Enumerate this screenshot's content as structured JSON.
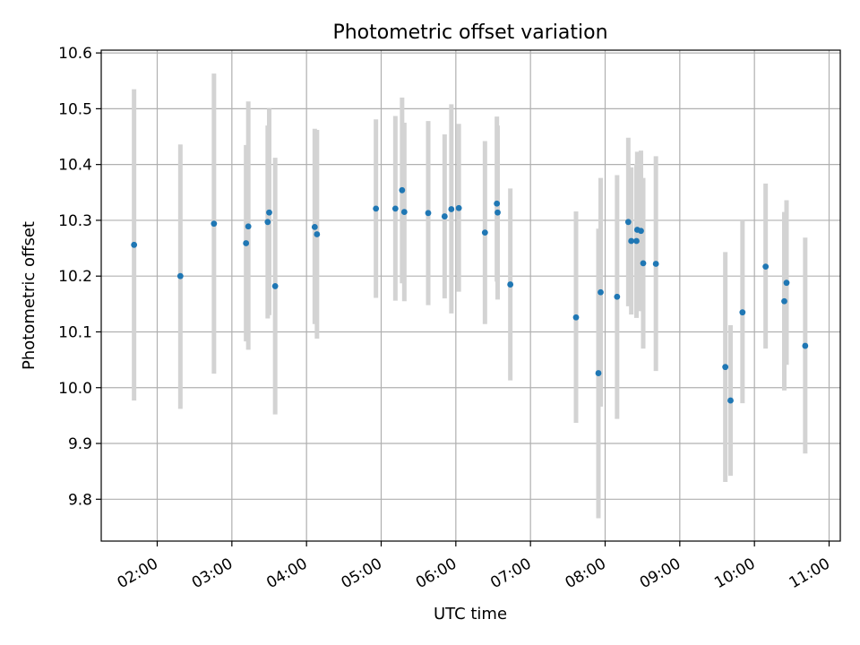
{
  "chart_data": {
    "type": "scatter",
    "title": "Photometric offset variation",
    "xlabel": "UTC time",
    "ylabel": "Photometric offset",
    "x_unit": "hours UTC",
    "xlim": [
      1.25,
      11.15
    ],
    "ylim": [
      9.725,
      10.605
    ],
    "grid": true,
    "colors": {
      "point": "#1f77b4",
      "errorbar": "#d3d3d3"
    },
    "x_ticks": [
      {
        "value": 2,
        "label": "02:00"
      },
      {
        "value": 3,
        "label": "03:00"
      },
      {
        "value": 4,
        "label": "04:00"
      },
      {
        "value": 5,
        "label": "05:00"
      },
      {
        "value": 6,
        "label": "06:00"
      },
      {
        "value": 7,
        "label": "07:00"
      },
      {
        "value": 8,
        "label": "08:00"
      },
      {
        "value": 9,
        "label": "09:00"
      },
      {
        "value": 10,
        "label": "10:00"
      },
      {
        "value": 11,
        "label": "11:00"
      }
    ],
    "y_ticks": [
      {
        "value": 9.8,
        "label": "9.8"
      },
      {
        "value": 9.9,
        "label": "9.9"
      },
      {
        "value": 10.0,
        "label": "10.0"
      },
      {
        "value": 10.1,
        "label": "10.1"
      },
      {
        "value": 10.2,
        "label": "10.2"
      },
      {
        "value": 10.3,
        "label": "10.3"
      },
      {
        "value": 10.4,
        "label": "10.4"
      },
      {
        "value": 10.5,
        "label": "10.5"
      },
      {
        "value": 10.6,
        "label": "10.6"
      }
    ],
    "points": [
      {
        "x": 1.69,
        "y": 10.256,
        "ylo": 9.977,
        "yhi": 10.535
      },
      {
        "x": 2.31,
        "y": 10.2,
        "ylo": 9.962,
        "yhi": 10.436
      },
      {
        "x": 2.76,
        "y": 10.294,
        "ylo": 10.025,
        "yhi": 10.563
      },
      {
        "x": 3.19,
        "y": 10.259,
        "ylo": 10.083,
        "yhi": 10.435
      },
      {
        "x": 3.22,
        "y": 10.289,
        "ylo": 10.068,
        "yhi": 10.513
      },
      {
        "x": 3.48,
        "y": 10.297,
        "ylo": 10.124,
        "yhi": 10.47
      },
      {
        "x": 3.5,
        "y": 10.314,
        "ylo": 10.13,
        "yhi": 10.5
      },
      {
        "x": 3.58,
        "y": 10.182,
        "ylo": 9.952,
        "yhi": 10.412
      },
      {
        "x": 4.11,
        "y": 10.288,
        "ylo": 10.114,
        "yhi": 10.464
      },
      {
        "x": 4.14,
        "y": 10.275,
        "ylo": 10.088,
        "yhi": 10.462
      },
      {
        "x": 4.93,
        "y": 10.321,
        "ylo": 10.161,
        "yhi": 10.481
      },
      {
        "x": 5.19,
        "y": 10.321,
        "ylo": 10.156,
        "yhi": 10.487
      },
      {
        "x": 5.28,
        "y": 10.354,
        "ylo": 10.187,
        "yhi": 10.52
      },
      {
        "x": 5.31,
        "y": 10.315,
        "ylo": 10.155,
        "yhi": 10.475
      },
      {
        "x": 5.63,
        "y": 10.313,
        "ylo": 10.148,
        "yhi": 10.478
      },
      {
        "x": 5.85,
        "y": 10.307,
        "ylo": 10.16,
        "yhi": 10.454
      },
      {
        "x": 5.94,
        "y": 10.32,
        "ylo": 10.133,
        "yhi": 10.508
      },
      {
        "x": 6.04,
        "y": 10.322,
        "ylo": 10.172,
        "yhi": 10.473
      },
      {
        "x": 6.39,
        "y": 10.278,
        "ylo": 10.114,
        "yhi": 10.442
      },
      {
        "x": 6.55,
        "y": 10.33,
        "ylo": 10.19,
        "yhi": 10.486
      },
      {
        "x": 6.56,
        "y": 10.314,
        "ylo": 10.158,
        "yhi": 10.47
      },
      {
        "x": 6.73,
        "y": 10.185,
        "ylo": 10.013,
        "yhi": 10.357
      },
      {
        "x": 7.61,
        "y": 10.126,
        "ylo": 9.937,
        "yhi": 10.316
      },
      {
        "x": 7.91,
        "y": 10.026,
        "ylo": 9.766,
        "yhi": 10.285
      },
      {
        "x": 7.94,
        "y": 10.171,
        "ylo": 9.966,
        "yhi": 10.376
      },
      {
        "x": 8.16,
        "y": 10.163,
        "ylo": 9.944,
        "yhi": 10.381
      },
      {
        "x": 8.31,
        "y": 10.297,
        "ylo": 10.146,
        "yhi": 10.448
      },
      {
        "x": 8.35,
        "y": 10.263,
        "ylo": 10.131,
        "yhi": 10.395
      },
      {
        "x": 8.42,
        "y": 10.263,
        "ylo": 10.125,
        "yhi": 10.401
      },
      {
        "x": 8.43,
        "y": 10.283,
        "ylo": 10.142,
        "yhi": 10.423
      },
      {
        "x": 8.48,
        "y": 10.281,
        "ylo": 10.137,
        "yhi": 10.425
      },
      {
        "x": 8.51,
        "y": 10.223,
        "ylo": 10.07,
        "yhi": 10.376
      },
      {
        "x": 8.68,
        "y": 10.222,
        "ylo": 10.03,
        "yhi": 10.415
      },
      {
        "x": 9.61,
        "y": 10.037,
        "ylo": 9.831,
        "yhi": 10.243
      },
      {
        "x": 9.68,
        "y": 9.977,
        "ylo": 9.842,
        "yhi": 10.112
      },
      {
        "x": 9.84,
        "y": 10.135,
        "ylo": 9.972,
        "yhi": 10.3
      },
      {
        "x": 10.15,
        "y": 10.217,
        "ylo": 10.07,
        "yhi": 10.366
      },
      {
        "x": 10.4,
        "y": 10.155,
        "ylo": 9.995,
        "yhi": 10.315
      },
      {
        "x": 10.43,
        "y": 10.188,
        "ylo": 10.041,
        "yhi": 10.336
      },
      {
        "x": 10.68,
        "y": 10.075,
        "ylo": 9.882,
        "yhi": 10.269
      }
    ]
  }
}
